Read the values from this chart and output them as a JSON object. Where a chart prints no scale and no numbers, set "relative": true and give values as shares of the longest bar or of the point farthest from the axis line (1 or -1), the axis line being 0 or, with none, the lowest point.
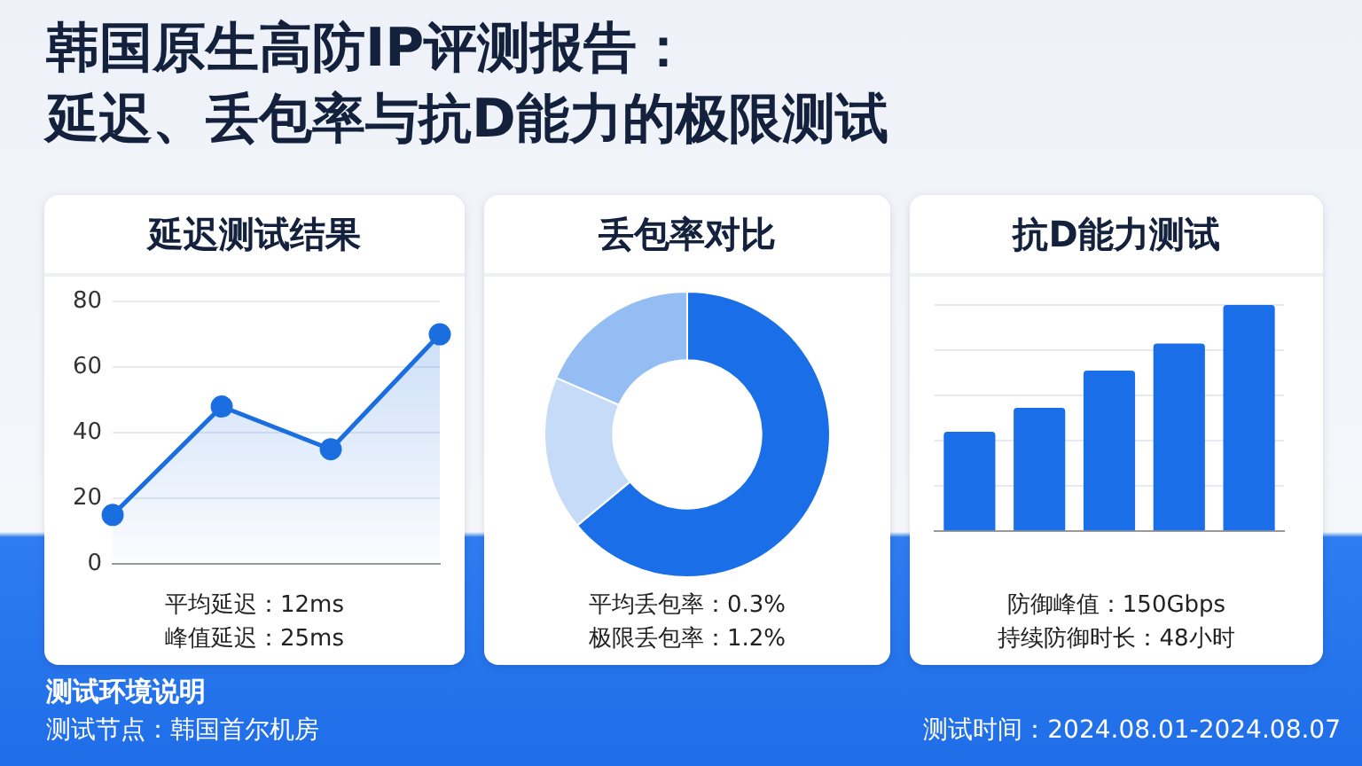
{
  "chart_data": [
    {
      "type": "other",
      "title": "韩国原生高防IP评测报告：",
      "subtitle": "延迟、丢包率与抗D能力的极限测试"
    },
    {
      "type": "area",
      "title": "延迟测试结果",
      "categories": [
        null,
        null,
        null,
        null
      ],
      "series": [
        {
          "color": "#1a6ee0",
          "values": [
            15,
            48,
            35,
            70
          ]
        }
      ],
      "ylim": [
        0,
        80
      ],
      "yticks": [
        0,
        20,
        40,
        60,
        80
      ],
      "grid": "y",
      "marker": "circle",
      "tick_labels": "y",
      "legend": false,
      "annotations": [
        "平均延迟：12ms",
        "峰值延迟：25ms"
      ]
    },
    {
      "type": "donut",
      "title": "丢包率对比",
      "categories": [
        null,
        null,
        null
      ],
      "values": [
        64,
        17.5,
        18.5
      ],
      "colors": [
        "#1a6fe8",
        "#c6dbf8",
        "#94bdf3"
      ],
      "legend": false,
      "annotations": [
        "平均丢包率：0.3%",
        "极限丢包率：1.2%"
      ]
    },
    {
      "type": "bar",
      "title": "抗D能力测试",
      "categories": [
        null,
        null,
        null,
        null,
        null
      ],
      "values": [
        0.44,
        0.545,
        0.71,
        0.83,
        1
      ],
      "color": "#1a6ee8",
      "relative": true,
      "grid": "y",
      "legend": false,
      "annotations": [
        "防御峰值：150Gbps",
        "持续防御时长：48小时"
      ]
    },
    {
      "type": "other",
      "title": "测试环境说明",
      "annotations": [
        "测试节点：韩国首尔机房",
        "测试时间：2024.08.01-2024.08.07"
      ]
    }
  ]
}
